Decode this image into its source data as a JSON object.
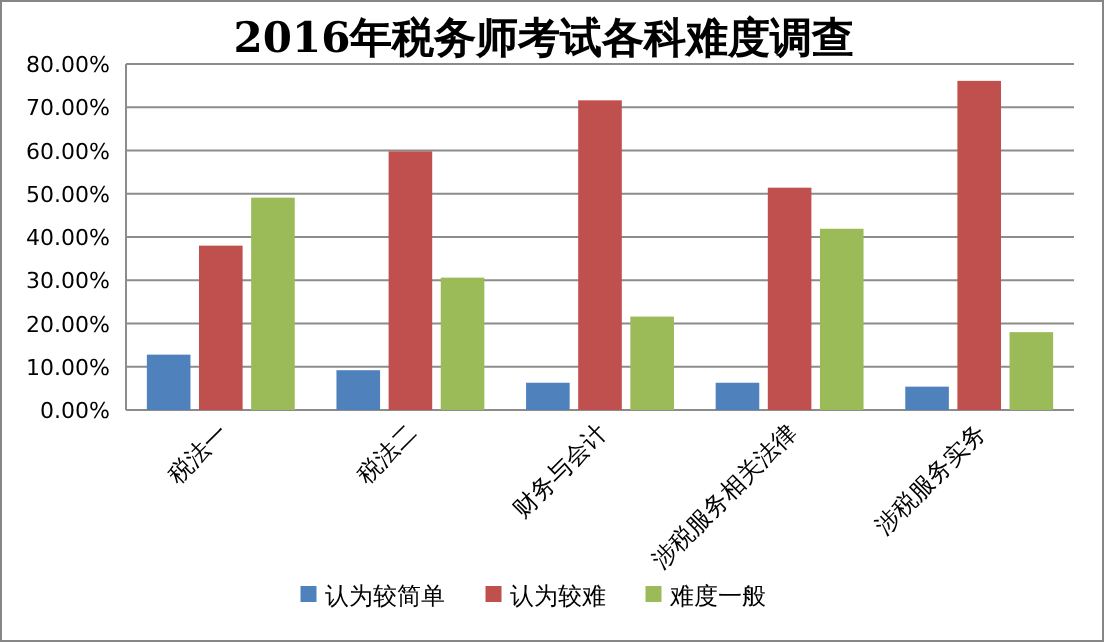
{
  "chart_data": {
    "type": "bar",
    "title": "2016年税务师考试各科难度调查",
    "categories": [
      "税法一",
      "税法二",
      "财务与会计",
      "涉税服务相关法律",
      "涉税服务实务"
    ],
    "series": [
      {
        "name": "认为较简单",
        "color": "#4f81bd",
        "values": [
          12.8,
          9.2,
          6.3,
          6.3,
          5.4
        ]
      },
      {
        "name": "认为较难",
        "color": "#c0504d",
        "values": [
          38.0,
          59.8,
          71.6,
          51.4,
          76.1
        ]
      },
      {
        "name": "难度一般",
        "color": "#9bbb59",
        "values": [
          49.1,
          30.6,
          21.6,
          41.9,
          18.0
        ]
      }
    ],
    "ylim": [
      0,
      80
    ],
    "yticks": [
      {
        "value": 0,
        "label": "0.00%"
      },
      {
        "value": 10,
        "label": "10.00%"
      },
      {
        "value": 20,
        "label": "20.00%"
      },
      {
        "value": 30,
        "label": "30.00%"
      },
      {
        "value": 40,
        "label": "40.00%"
      },
      {
        "value": 50,
        "label": "50.00%"
      },
      {
        "value": 60,
        "label": "60.00%"
      },
      {
        "value": 70,
        "label": "70.00%"
      },
      {
        "value": 80,
        "label": "80.00%"
      }
    ],
    "grid": "y",
    "legend": "bottom"
  }
}
